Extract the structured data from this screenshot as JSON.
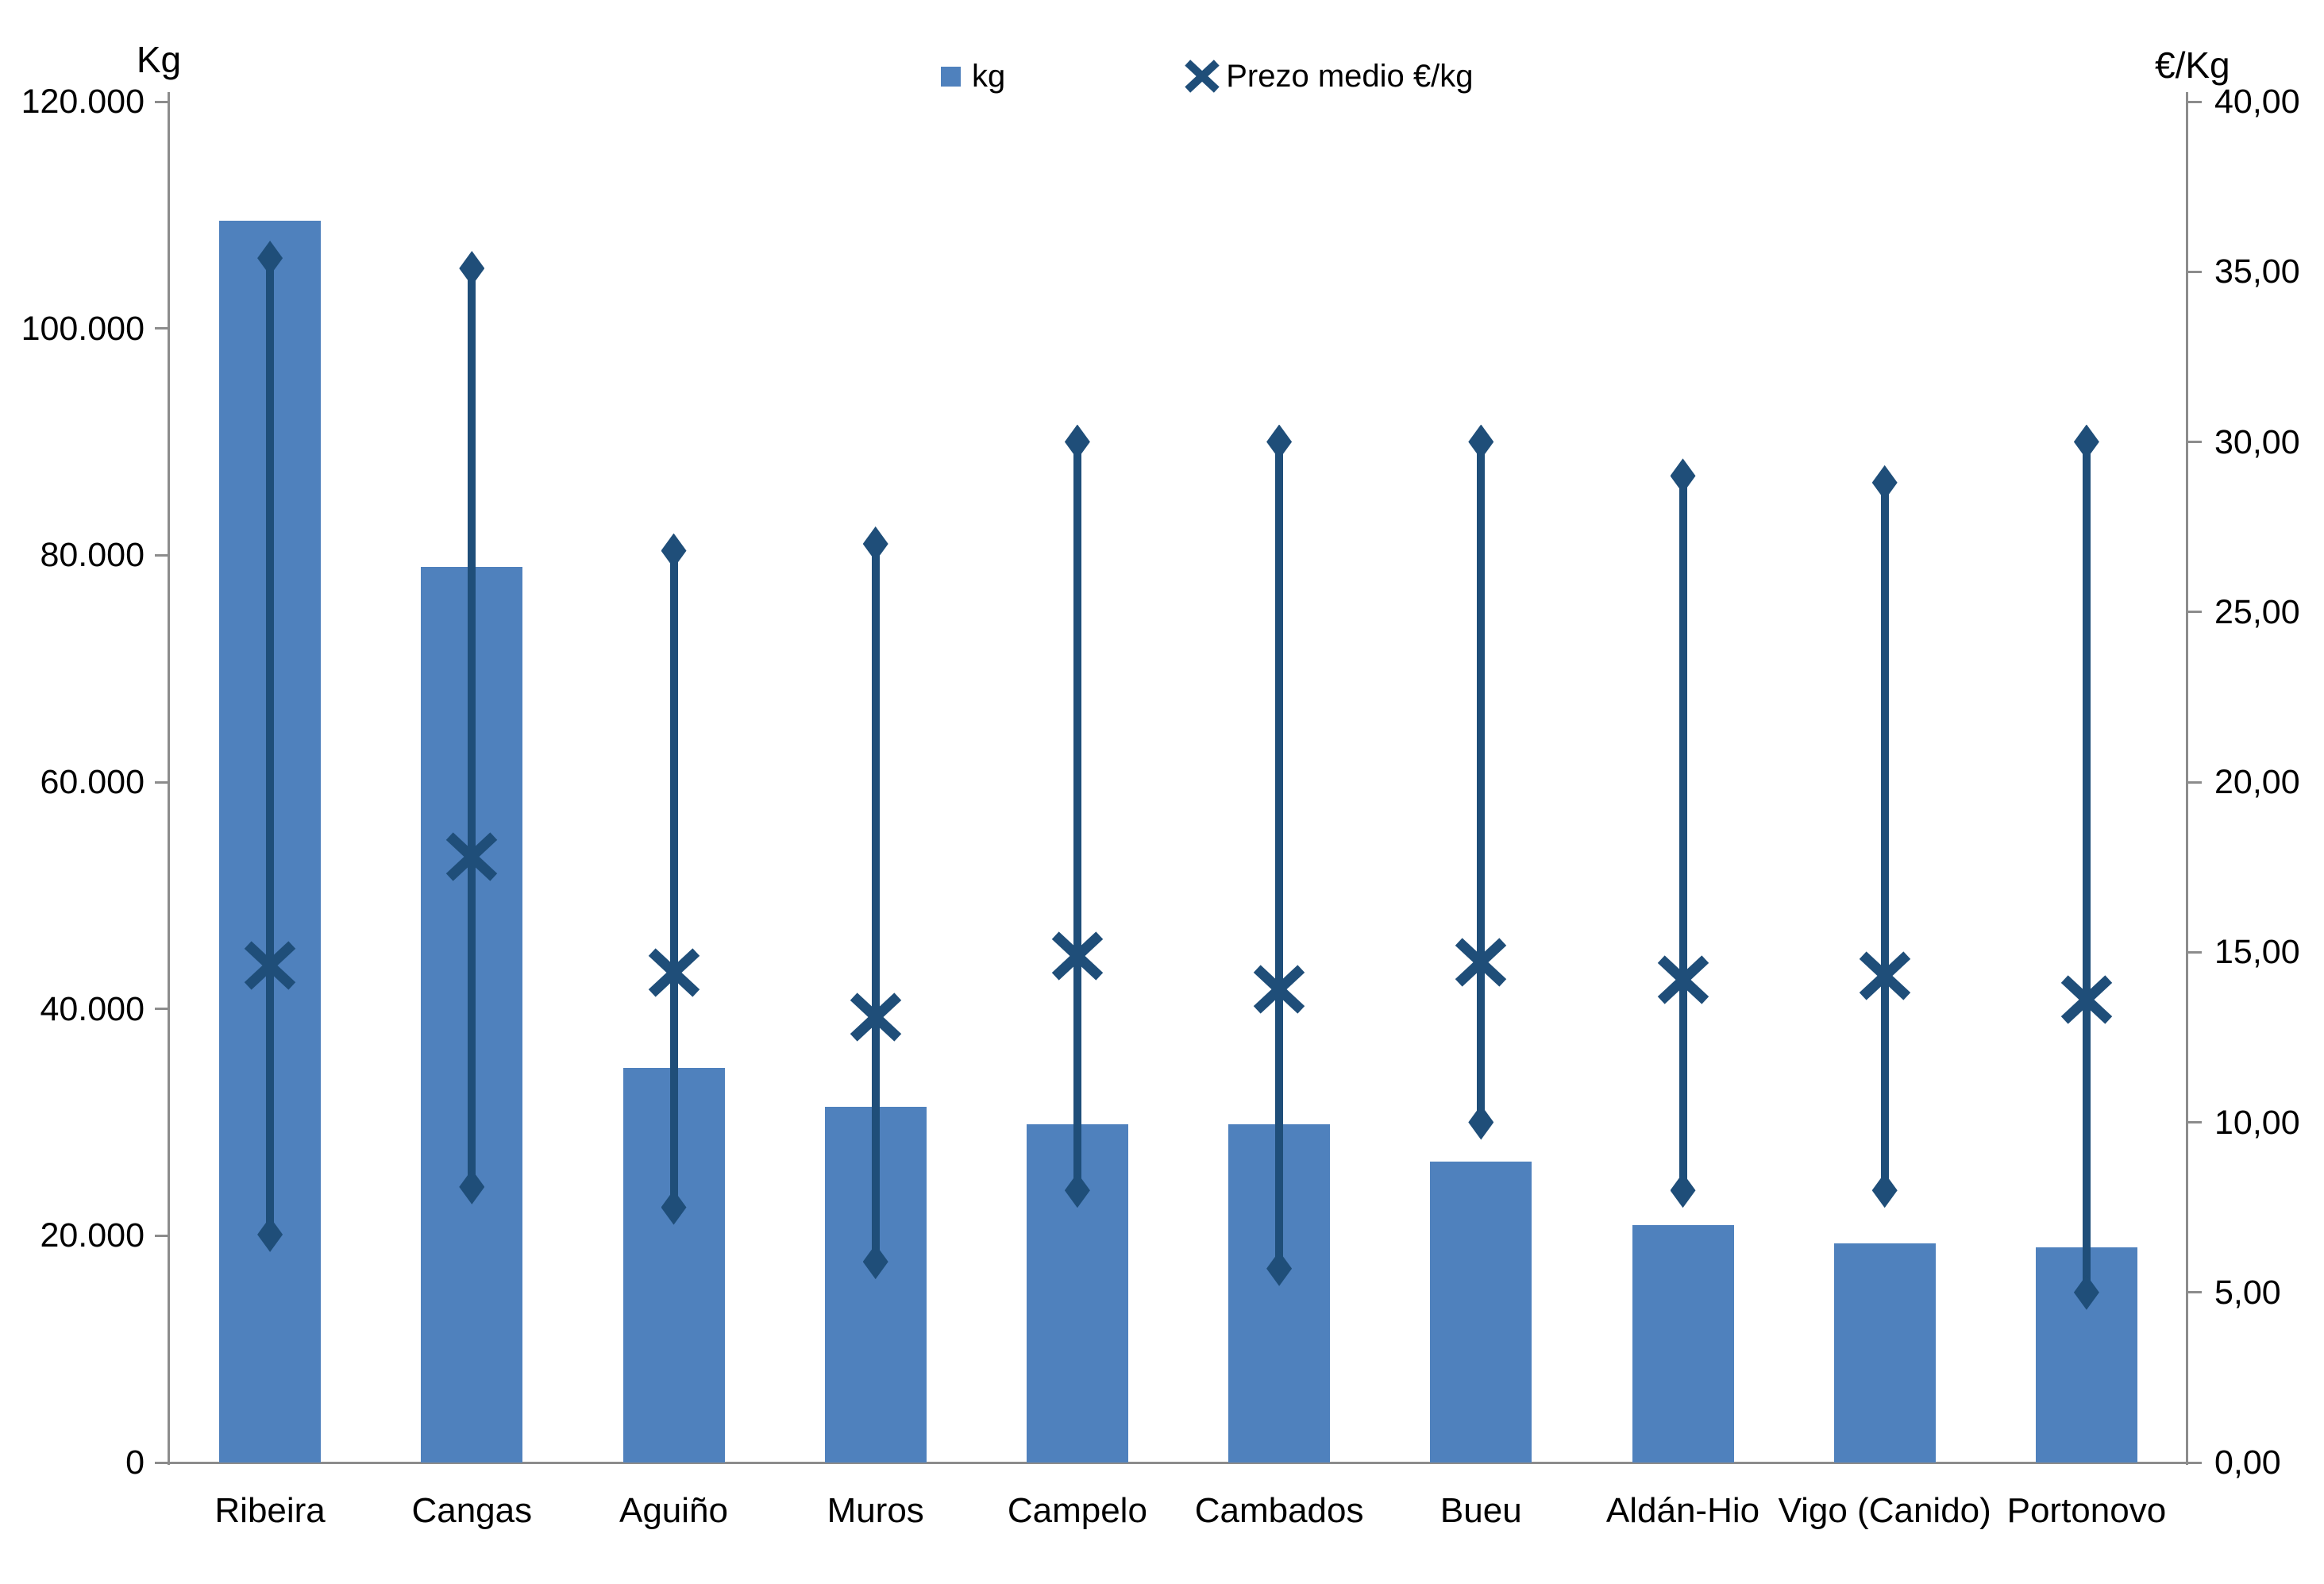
{
  "chart_data": {
    "type": "bar",
    "title": "",
    "categories": [
      "Ribeira",
      "Cangas",
      "Aguiño",
      "Muros",
      "Campelo",
      "Cambados",
      "Bueu",
      "Aldán-Hio",
      "Vigo (Canido)",
      "Portonovo"
    ],
    "series": [
      {
        "name": "kg",
        "type": "bar",
        "axis": "left",
        "values": [
          109500,
          79000,
          34800,
          31400,
          29800,
          29800,
          26500,
          20900,
          19300,
          19000
        ]
      },
      {
        "name": "Prezo medio €/kg",
        "type": "high-low-average",
        "axis": "right",
        "high": [
          35.4,
          35.1,
          26.8,
          27.0,
          30.0,
          30.0,
          30.0,
          29.0,
          28.8,
          30.0
        ],
        "average": [
          14.6,
          17.8,
          14.4,
          13.1,
          14.9,
          13.9,
          14.7,
          14.2,
          14.3,
          13.6
        ],
        "low": [
          6.7,
          8.1,
          7.5,
          5.9,
          8.0,
          5.7,
          10.0,
          8.0,
          8.0,
          5.0
        ]
      }
    ],
    "left_axis": {
      "title": "Kg",
      "min": 0,
      "max": 120000,
      "step": 20000,
      "tick_labels": [
        "120.000",
        "100.000",
        "80.000",
        "60.000",
        "40.000",
        "20.000",
        "0"
      ]
    },
    "right_axis": {
      "title": "€/Kg",
      "min": 0,
      "max": 40,
      "step": 5,
      "tick_labels": [
        "40,00",
        "35,00",
        "30,00",
        "25,00",
        "20,00",
        "15,00",
        "10,00",
        "5,00",
        "0,00"
      ]
    },
    "legend": [
      {
        "label": "kg",
        "marker": "square"
      },
      {
        "label": "Prezo medio €/kg",
        "marker": "x"
      }
    ],
    "colors": {
      "bar": "#4F81BD",
      "marker": "#1F4E79",
      "axis": "#8C8C8C",
      "text": "#000000"
    },
    "layout_hints": {
      "legend_position": "top-center",
      "grid": "off"
    }
  }
}
